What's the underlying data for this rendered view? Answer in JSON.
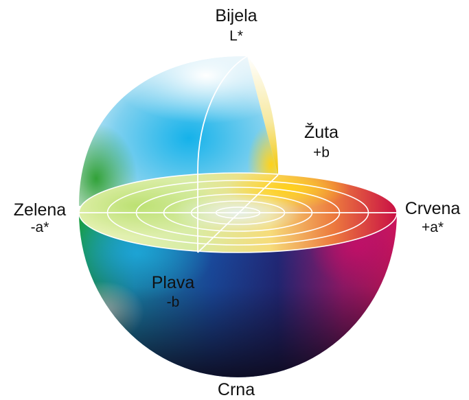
{
  "labels": {
    "white": {
      "name": "Bijela",
      "axis": "L*"
    },
    "yellow": {
      "name": "Žuta",
      "axis": "+b"
    },
    "green": {
      "name": "Zelena",
      "axis": "-a*"
    },
    "red": {
      "name": "Crvena",
      "axis": "+a*"
    },
    "blue": {
      "name": "Plava",
      "axis": "-b"
    },
    "black": {
      "name": "Crna"
    }
  },
  "colors": {
    "white": "#ffffff",
    "yellow": "#f6d200",
    "green": "#2fa33a",
    "red": "#d0104e",
    "blue": "#1a3f9e",
    "cyan": "#21b4e6",
    "black": "#120d1a"
  }
}
